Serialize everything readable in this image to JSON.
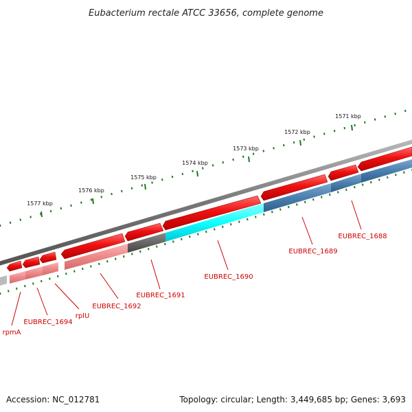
{
  "title": "Eubacterium rectale ATCC 33656, complete genome",
  "footer": {
    "accession": "Accession: NC_012781",
    "summary": "Topology: circular; Length: 3,449,685 bp; Genes: 3,693"
  },
  "scale_labels": [
    "1571 kbp",
    "1572 kbp",
    "1573 kbp",
    "1574 kbp",
    "1575 kbp",
    "1576 kbp",
    "1577 kbp"
  ],
  "gene_labels": [
    "EUBREC_1688",
    "EUBREC_1689",
    "EUBREC_1690",
    "EUBREC_1691",
    "EUBREC_1692",
    "rplU",
    "EUBREC_1694",
    "rpmA"
  ],
  "colors": {
    "gene_red": "#ee1111",
    "cds_pink": "#ee8888",
    "cds_cyan": "#11ffff",
    "cds_steelblue": "#4a7fae",
    "cds_gray": "#666666",
    "backbone": "#8a8a8a",
    "ticks": "#1a7a1a",
    "label": "#cc0000"
  }
}
